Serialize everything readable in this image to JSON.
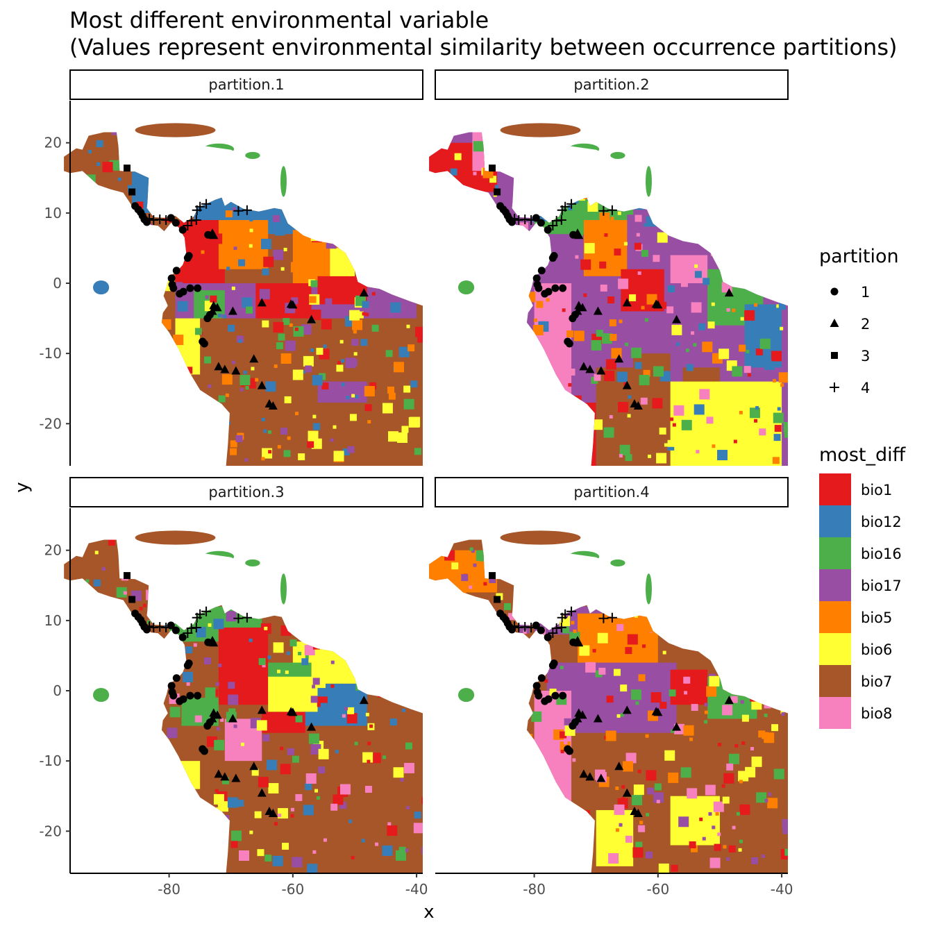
{
  "chart_data": {
    "type": "raster-map-faceted",
    "title": "Most different environmental variable",
    "subtitle": "(Values represent environmental similarity between occurrence partitions)",
    "xlabel": "x",
    "ylabel": "y",
    "xlim": [
      -96,
      -39
    ],
    "ylim": [
      -26,
      26
    ],
    "x_ticks": [
      -80,
      -60,
      -40
    ],
    "x_tick_labels": [
      "-80",
      "-60",
      "-40"
    ],
    "y_ticks": [
      20,
      10,
      0,
      -10,
      -20
    ],
    "y_tick_labels": [
      "20",
      "10",
      "0",
      "-10",
      "-20"
    ],
    "grid": false,
    "legend_position": "right",
    "facets": [
      {
        "label": "partition.1",
        "dominant": [
          "bio7",
          "bio17",
          "bio1",
          "bio12",
          "bio5",
          "bio6"
        ]
      },
      {
        "label": "partition.2",
        "dominant": [
          "bio17",
          "bio8",
          "bio1",
          "bio16",
          "bio7",
          "bio6",
          "bio5",
          "bio12"
        ]
      },
      {
        "label": "partition.3",
        "dominant": [
          "bio7",
          "bio6",
          "bio16",
          "bio1",
          "bio8",
          "bio12",
          "bio17"
        ]
      },
      {
        "label": "partition.4",
        "dominant": [
          "bio7",
          "bio17",
          "bio5",
          "bio1",
          "bio8",
          "bio6",
          "bio16"
        ]
      }
    ],
    "legends": {
      "partition": {
        "title": "partition",
        "items": [
          {
            "label": "1",
            "shape": "circle"
          },
          {
            "label": "2",
            "shape": "triangle"
          },
          {
            "label": "3",
            "shape": "square"
          },
          {
            "label": "4",
            "shape": "plus"
          }
        ]
      },
      "most_diff": {
        "title": "most_diff",
        "items": [
          {
            "label": "bio1",
            "color": "#E41A1C"
          },
          {
            "label": "bio12",
            "color": "#377EB8"
          },
          {
            "label": "bio16",
            "color": "#4DAF4A"
          },
          {
            "label": "bio17",
            "color": "#984EA3"
          },
          {
            "label": "bio5",
            "color": "#FF7F00"
          },
          {
            "label": "bio6",
            "color": "#FFFF33"
          },
          {
            "label": "bio7",
            "color": "#A65628"
          },
          {
            "label": "bio8",
            "color": "#F781BF"
          }
        ]
      }
    },
    "occurrences": [
      {
        "x": -86.8,
        "y": 16.4,
        "p": 3
      },
      {
        "x": -86.0,
        "y": 13.0,
        "p": 3
      },
      {
        "x": -85.5,
        "y": 11.0,
        "p": 1
      },
      {
        "x": -85.0,
        "y": 10.5,
        "p": 1
      },
      {
        "x": -84.6,
        "y": 10.1,
        "p": 1
      },
      {
        "x": -84.3,
        "y": 9.6,
        "p": 1
      },
      {
        "x": -84.0,
        "y": 9.1,
        "p": 1
      },
      {
        "x": -83.6,
        "y": 8.7,
        "p": 1
      },
      {
        "x": -83.2,
        "y": 9.2,
        "p": 4
      },
      {
        "x": -82.5,
        "y": 9.0,
        "p": 4
      },
      {
        "x": -81.5,
        "y": 9.1,
        "p": 4
      },
      {
        "x": -80.5,
        "y": 9.0,
        "p": 4
      },
      {
        "x": -79.7,
        "y": 9.3,
        "p": 1
      },
      {
        "x": -78.9,
        "y": 8.6,
        "p": 1
      },
      {
        "x": -77.8,
        "y": 7.6,
        "p": 1
      },
      {
        "x": -77.0,
        "y": 8.2,
        "p": 4
      },
      {
        "x": -76.4,
        "y": 8.9,
        "p": 4
      },
      {
        "x": -75.6,
        "y": 9.0,
        "p": 4
      },
      {
        "x": -75.5,
        "y": 10.4,
        "p": 4
      },
      {
        "x": -75.0,
        "y": 10.9,
        "p": 4
      },
      {
        "x": -74.0,
        "y": 11.3,
        "p": 4
      },
      {
        "x": -68.8,
        "y": 10.3,
        "p": 4
      },
      {
        "x": -67.4,
        "y": 10.4,
        "p": 4
      },
      {
        "x": -73.7,
        "y": 6.9,
        "p": 1
      },
      {
        "x": -73.0,
        "y": 7.1,
        "p": 2
      },
      {
        "x": -72.8,
        "y": 6.8,
        "p": 2
      },
      {
        "x": -76.8,
        "y": 3.9,
        "p": 1
      },
      {
        "x": -77.0,
        "y": 3.6,
        "p": 1
      },
      {
        "x": -78.8,
        "y": 1.8,
        "p": 1
      },
      {
        "x": -79.6,
        "y": 0.7,
        "p": 1
      },
      {
        "x": -79.5,
        "y": -0.2,
        "p": 1
      },
      {
        "x": -79.3,
        "y": -0.7,
        "p": 1
      },
      {
        "x": -78.3,
        "y": -1.5,
        "p": 1
      },
      {
        "x": -77.7,
        "y": -1.2,
        "p": 1
      },
      {
        "x": -76.6,
        "y": -0.7,
        "p": 1
      },
      {
        "x": -75.4,
        "y": -0.7,
        "p": 1
      },
      {
        "x": -72.8,
        "y": -3.2,
        "p": 2
      },
      {
        "x": -72.2,
        "y": -3.5,
        "p": 2
      },
      {
        "x": -73.0,
        "y": -4.0,
        "p": 2
      },
      {
        "x": -73.4,
        "y": -4.5,
        "p": 1
      },
      {
        "x": -73.8,
        "y": -5.0,
        "p": 1
      },
      {
        "x": -69.7,
        "y": -4.0,
        "p": 2
      },
      {
        "x": -65.0,
        "y": -2.8,
        "p": 2
      },
      {
        "x": -60.3,
        "y": -3.0,
        "p": 2
      },
      {
        "x": -60.0,
        "y": -3.1,
        "p": 2
      },
      {
        "x": -57.0,
        "y": -5.2,
        "p": 2
      },
      {
        "x": -48.5,
        "y": -1.4,
        "p": 2
      },
      {
        "x": -74.6,
        "y": -8.3,
        "p": 1
      },
      {
        "x": -74.3,
        "y": -8.6,
        "p": 1
      },
      {
        "x": -72.0,
        "y": -11.9,
        "p": 2
      },
      {
        "x": -71.0,
        "y": -12.3,
        "p": 2
      },
      {
        "x": -69.2,
        "y": -12.5,
        "p": 2
      },
      {
        "x": -66.3,
        "y": -10.8,
        "p": 2
      },
      {
        "x": -65.0,
        "y": -14.6,
        "p": 2
      },
      {
        "x": -63.8,
        "y": -17.2,
        "p": 2
      },
      {
        "x": -63.2,
        "y": -17.5,
        "p": 2
      }
    ]
  }
}
